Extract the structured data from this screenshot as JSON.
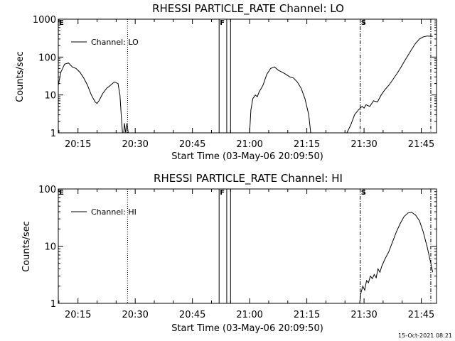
{
  "timestamp": "15-Oct-2021 08:21",
  "chart_data": [
    {
      "type": "line",
      "title": "RHESSI PARTICLE_RATE Channel: LO",
      "xlabel": "Start Time (03-May-06 20:09:50)",
      "ylabel": "Counts/sec",
      "yscale": "log",
      "ylim": [
        1,
        1000
      ],
      "xlim": [
        "20:09:50",
        "21:49:00"
      ],
      "x_ticks": [
        "20:15",
        "20:30",
        "20:45",
        "21:00",
        "21:15",
        "21:30",
        "21:45"
      ],
      "y_ticks": [
        "1",
        "10",
        "100",
        "1000"
      ],
      "legend": "top-left",
      "series": [
        {
          "name": "Channel: LO",
          "segments": [
            [
              [
                "20:09:50",
                18
              ],
              [
                "20:10:30",
                40
              ],
              [
                "20:11:30",
                65
              ],
              [
                "20:12:30",
                70
              ],
              [
                "20:13:30",
                55
              ],
              [
                "20:14:30",
                50
              ],
              [
                "20:15:30",
                40
              ],
              [
                "20:16:30",
                28
              ],
              [
                "20:17:30",
                18
              ],
              [
                "20:18:30",
                10
              ],
              [
                "20:19:30",
                6.5
              ],
              [
                "20:20:00",
                6
              ],
              [
                "20:20:30",
                7
              ],
              [
                "20:21:30",
                11
              ],
              [
                "20:22:30",
                15
              ],
              [
                "20:23:30",
                18
              ],
              [
                "20:24:30",
                22
              ],
              [
                "20:25:30",
                20
              ],
              [
                "20:26:00",
                10
              ],
              [
                "20:26:20",
                3
              ],
              [
                "20:26:40",
                1
              ]
            ],
            [
              [
                "20:27:00",
                1
              ],
              [
                "20:27:10",
                1.8
              ],
              [
                "20:27:30",
                1
              ],
              [
                "20:27:50",
                1.8
              ],
              [
                "20:28:10",
                1
              ]
            ],
            [
              [
                "21:00:00",
                1
              ],
              [
                "21:00:20",
                4
              ],
              [
                "21:00:50",
                8
              ],
              [
                "21:01:30",
                10
              ],
              [
                "21:02:00",
                9
              ],
              [
                "21:02:30",
                12
              ],
              [
                "21:03:30",
                18
              ],
              [
                "21:04:30",
                35
              ],
              [
                "21:05:30",
                50
              ],
              [
                "21:06:30",
                55
              ],
              [
                "21:07:30",
                45
              ],
              [
                "21:08:30",
                40
              ],
              [
                "21:09:30",
                35
              ],
              [
                "21:10:30",
                30
              ],
              [
                "21:11:30",
                28
              ],
              [
                "21:12:30",
                22
              ],
              [
                "21:13:30",
                15
              ],
              [
                "21:14:30",
                8
              ],
              [
                "21:15:30",
                3
              ],
              [
                "21:16:00",
                1
              ]
            ],
            [
              [
                "21:25:30",
                1
              ],
              [
                "21:26:30",
                1.6
              ],
              [
                "21:27:30",
                3
              ],
              [
                "21:28:30",
                4
              ],
              [
                "21:29:30",
                5
              ],
              [
                "21:30:00",
                4.5
              ],
              [
                "21:30:30",
                5.5
              ],
              [
                "21:31:30",
                5
              ],
              [
                "21:32:30",
                7
              ],
              [
                "21:33:30",
                6.5
              ],
              [
                "21:34:30",
                10
              ],
              [
                "21:35:30",
                14
              ],
              [
                "21:36:30",
                18
              ],
              [
                "21:37:30",
                25
              ],
              [
                "21:38:30",
                35
              ],
              [
                "21:39:30",
                50
              ],
              [
                "21:40:30",
                75
              ],
              [
                "21:41:30",
                110
              ],
              [
                "21:42:30",
                160
              ],
              [
                "21:43:30",
                230
              ],
              [
                "21:44:30",
                300
              ],
              [
                "21:45:30",
                340
              ],
              [
                "21:46:30",
                360
              ],
              [
                "21:47:30",
                355
              ],
              [
                "21:48:00",
                350
              ]
            ]
          ]
        }
      ],
      "event_lines": [
        {
          "label": "E",
          "time": "20:09:50",
          "style": "solid"
        },
        {
          "label": "",
          "time": "20:28:00",
          "style": "dotted"
        },
        {
          "label": "F",
          "time": "20:52:00",
          "style": "solid"
        },
        {
          "label": "",
          "time": "20:54:00",
          "style": "solid"
        },
        {
          "label": "",
          "time": "20:55:00",
          "style": "solid"
        },
        {
          "label": "S",
          "time": "21:29:00",
          "style": "dashdot"
        },
        {
          "label": "",
          "time": "21:47:30",
          "style": "dashdot"
        }
      ]
    },
    {
      "type": "line",
      "title": "RHESSI PARTICLE_RATE Channel: HI",
      "xlabel": "Start Time (03-May-06 20:09:50)",
      "ylabel": "Counts/sec",
      "yscale": "log",
      "ylim": [
        1,
        100
      ],
      "xlim": [
        "20:09:50",
        "21:49:00"
      ],
      "x_ticks": [
        "20:15",
        "20:30",
        "20:45",
        "21:00",
        "21:15",
        "21:30",
        "21:45"
      ],
      "y_ticks": [
        "1",
        "10",
        "100"
      ],
      "legend": "top-left",
      "series": [
        {
          "name": "Channel: HI",
          "segments": [
            [
              [
                "21:28:50",
                1
              ],
              [
                "21:29:10",
                1.5
              ],
              [
                "21:29:40",
                2
              ],
              [
                "21:30:10",
                1.7
              ],
              [
                "21:30:40",
                2.5
              ],
              [
                "21:31:10",
                2.3
              ],
              [
                "21:31:40",
                3
              ],
              [
                "21:32:10",
                2.7
              ],
              [
                "21:32:40",
                3.2
              ],
              [
                "21:33:10",
                2.8
              ],
              [
                "21:33:40",
                4
              ],
              [
                "21:34:10",
                3.5
              ],
              [
                "21:34:40",
                4.5
              ],
              [
                "21:35:30",
                6
              ],
              [
                "21:36:30",
                8
              ],
              [
                "21:37:30",
                12
              ],
              [
                "21:38:30",
                18
              ],
              [
                "21:39:30",
                25
              ],
              [
                "21:40:30",
                33
              ],
              [
                "21:41:30",
                38
              ],
              [
                "21:42:30",
                39
              ],
              [
                "21:43:30",
                35
              ],
              [
                "21:44:30",
                28
              ],
              [
                "21:45:30",
                18
              ],
              [
                "21:46:30",
                10
              ],
              [
                "21:47:30",
                5
              ],
              [
                "21:48:00",
                3.5
              ]
            ]
          ]
        }
      ],
      "event_lines": [
        {
          "label": "E",
          "time": "20:09:50",
          "style": "solid"
        },
        {
          "label": "",
          "time": "20:28:00",
          "style": "dotted"
        },
        {
          "label": "F",
          "time": "20:52:00",
          "style": "solid"
        },
        {
          "label": "",
          "time": "20:54:00",
          "style": "solid"
        },
        {
          "label": "",
          "time": "20:55:00",
          "style": "solid"
        },
        {
          "label": "S",
          "time": "21:29:00",
          "style": "dashdot"
        },
        {
          "label": "",
          "time": "21:47:30",
          "style": "dashdot"
        }
      ]
    }
  ]
}
